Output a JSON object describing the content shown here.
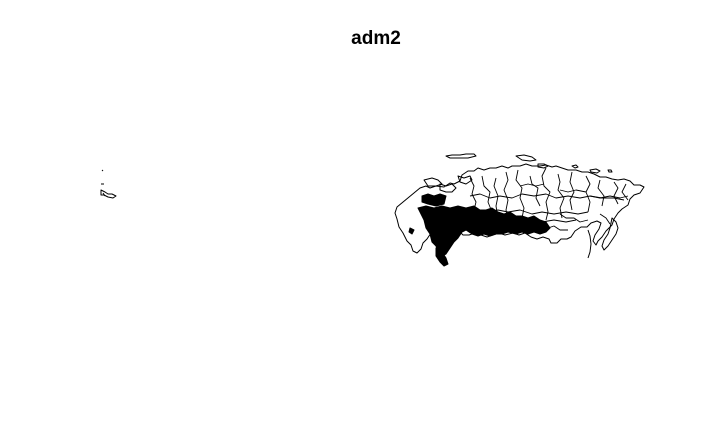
{
  "plot": {
    "title": "adm2"
  },
  "colors": {
    "background": "#ffffff",
    "boundary": "#000000"
  }
}
